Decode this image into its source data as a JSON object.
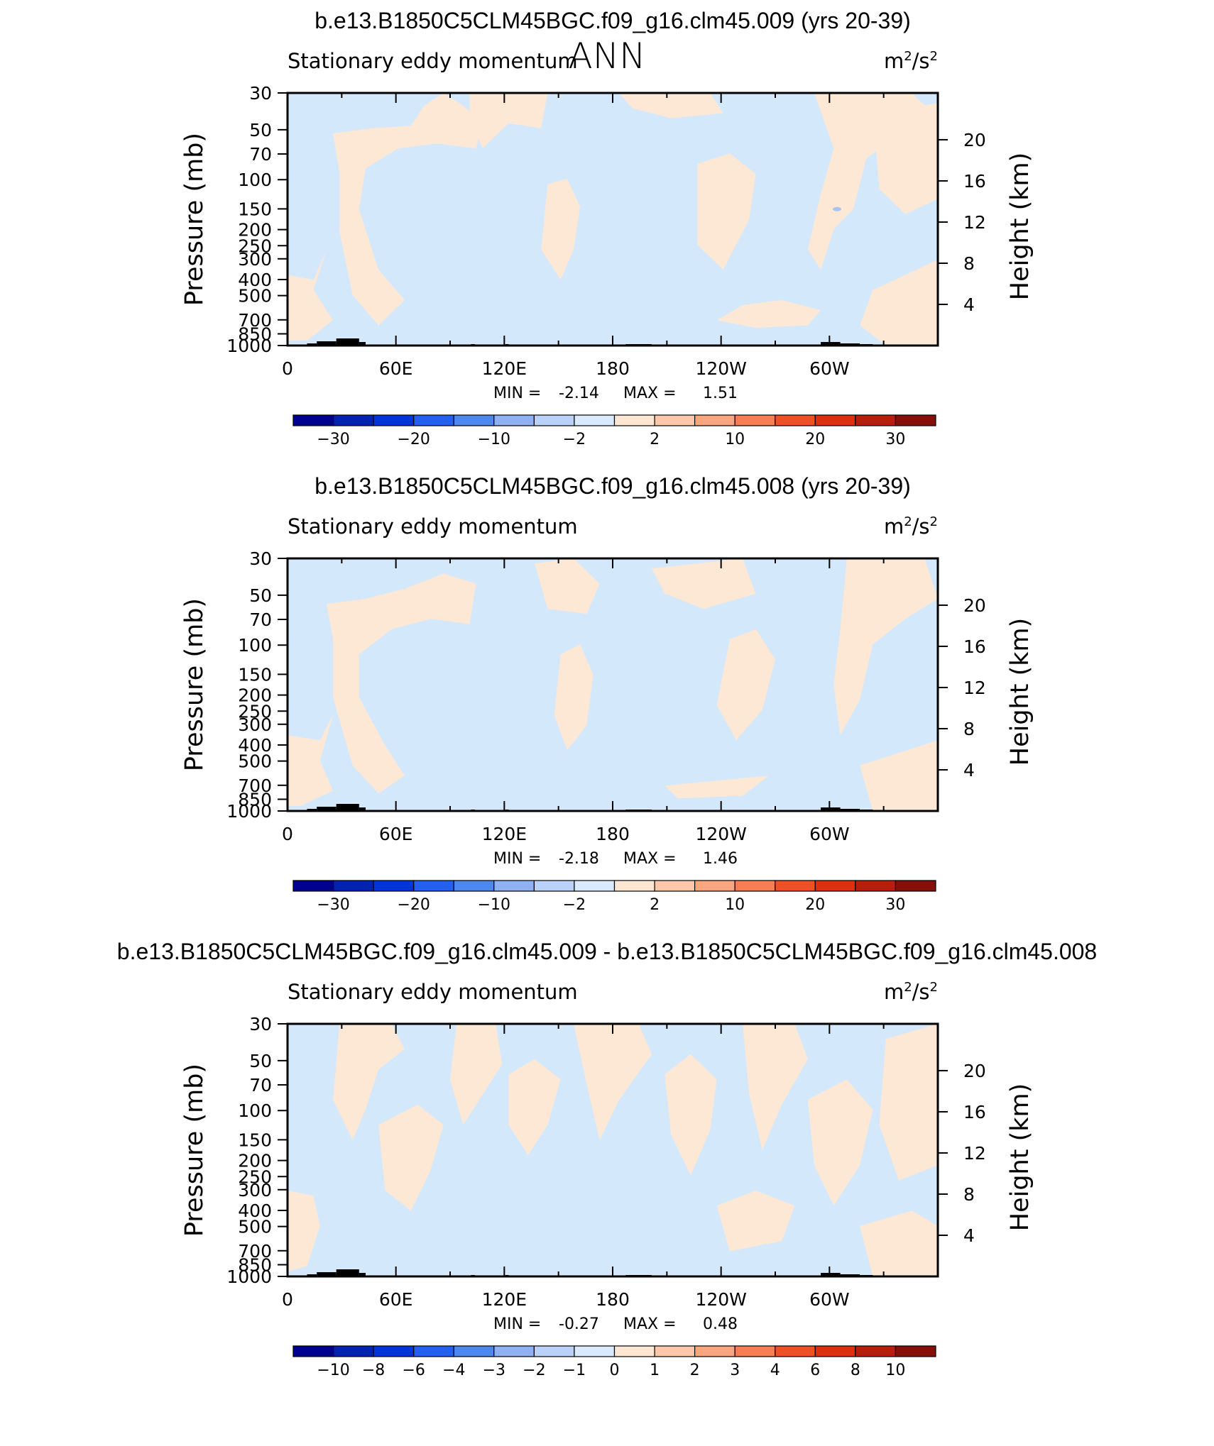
{
  "figure": {
    "title": "ANN",
    "colors": {
      "neg": "#d3e8fb",
      "pos": "#fde8d6",
      "frame": "#000000"
    }
  },
  "chart_data": [
    {
      "type": "contour",
      "title": "b.e13.B1850C5CLM45BGC.f09_g16.clm45.009 (yrs 20-39)",
      "variable": "Stationary eddy momentum",
      "units": "m²/s²",
      "units_base": "m",
      "units_sup": "2",
      "units_mid": "/s",
      "units_sup2": "2",
      "ylabel": "Pressure (mb)",
      "ylabel_right": "Height (km)",
      "xticks": [
        "0",
        "60E",
        "120E",
        "180",
        "120W",
        "60W"
      ],
      "yticks_pressure": [
        "30",
        "50",
        "70",
        "100",
        "150",
        "200",
        "250",
        "300",
        "400",
        "500",
        "700",
        "850",
        "1000"
      ],
      "yticks_height": [
        "20",
        "16",
        "12",
        "8",
        "4"
      ],
      "ylim_mb": [
        1000,
        30
      ],
      "min_label": "MIN =",
      "min": "-2.14",
      "max_label": "MAX =",
      "max": "1.51",
      "colorbar": {
        "levels": [
          "−30",
          "−20",
          "−10",
          "−2",
          "2",
          "10",
          "20",
          "30"
        ],
        "colors": [
          "#00008f",
          "#0022b3",
          "#0035d9",
          "#2360f2",
          "#4d88ef",
          "#8fb0f2",
          "#b9d0f8",
          "#d9eafc",
          "#fde7d3",
          "#fcc8a9",
          "#f9a57f",
          "#f57e53",
          "#ef5125",
          "#de2f0f",
          "#b91e0a",
          "#861008"
        ],
        "label_ticks": [
          1,
          3,
          5,
          7,
          8,
          9,
          11,
          13,
          15
        ]
      }
    },
    {
      "type": "contour",
      "title": "b.e13.B1850C5CLM45BGC.f09_g16.clm45.008 (yrs 20-39)",
      "variable": "Stationary eddy momentum",
      "units": "m²/s²",
      "units_base": "m",
      "units_sup": "2",
      "units_mid": "/s",
      "units_sup2": "2",
      "ylabel": "Pressure (mb)",
      "ylabel_right": "Height (km)",
      "xticks": [
        "0",
        "60E",
        "120E",
        "180",
        "120W",
        "60W"
      ],
      "yticks_pressure": [
        "30",
        "50",
        "70",
        "100",
        "150",
        "200",
        "250",
        "300",
        "400",
        "500",
        "700",
        "850",
        "1000"
      ],
      "yticks_height": [
        "20",
        "16",
        "12",
        "8",
        "4"
      ],
      "ylim_mb": [
        1000,
        30
      ],
      "min_label": "MIN =",
      "min": "-2.18",
      "max_label": "MAX =",
      "max": "1.46",
      "colorbar": {
        "levels": [
          "−30",
          "−20",
          "−10",
          "−2",
          "2",
          "10",
          "20",
          "30"
        ],
        "colors": [
          "#00008f",
          "#0022b3",
          "#0035d9",
          "#2360f2",
          "#4d88ef",
          "#8fb0f2",
          "#b9d0f8",
          "#d9eafc",
          "#fde7d3",
          "#fcc8a9",
          "#f9a57f",
          "#f57e53",
          "#ef5125",
          "#de2f0f",
          "#b91e0a",
          "#861008"
        ]
      }
    },
    {
      "type": "contour",
      "title": "b.e13.B1850C5CLM45BGC.f09_g16.clm45.009 - b.e13.B1850C5CLM45BGC.f09_g16.clm45.008",
      "variable": "Stationary eddy momentum",
      "units": "m²/s²",
      "units_base": "m",
      "units_sup": "2",
      "units_mid": "/s",
      "units_sup2": "2",
      "ylabel": "Pressure (mb)",
      "ylabel_right": "Height (km)",
      "xticks": [
        "0",
        "60E",
        "120E",
        "180",
        "120W",
        "60W"
      ],
      "yticks_pressure": [
        "30",
        "50",
        "70",
        "100",
        "150",
        "200",
        "250",
        "300",
        "400",
        "500",
        "700",
        "850",
        "1000"
      ],
      "yticks_height": [
        "20",
        "16",
        "12",
        "8",
        "4"
      ],
      "ylim_mb": [
        1000,
        30
      ],
      "min_label": "MIN =",
      "min": "-0.27",
      "max_label": "MAX =",
      "max": "0.48",
      "colorbar": {
        "levels": [
          "−10",
          "−8",
          "−6",
          "−4",
          "−3",
          "−2",
          "−1",
          "0",
          "1",
          "2",
          "3",
          "4",
          "6",
          "8",
          "10"
        ],
        "colors": [
          "#00008f",
          "#0022b3",
          "#0035d9",
          "#2360f2",
          "#4d88ef",
          "#8fb0f2",
          "#b9d0f8",
          "#d9eafc",
          "#fde7d3",
          "#fcc8a9",
          "#f9a57f",
          "#f57e53",
          "#ef5125",
          "#de2f0f",
          "#b91e0a",
          "#861008"
        ]
      }
    }
  ]
}
